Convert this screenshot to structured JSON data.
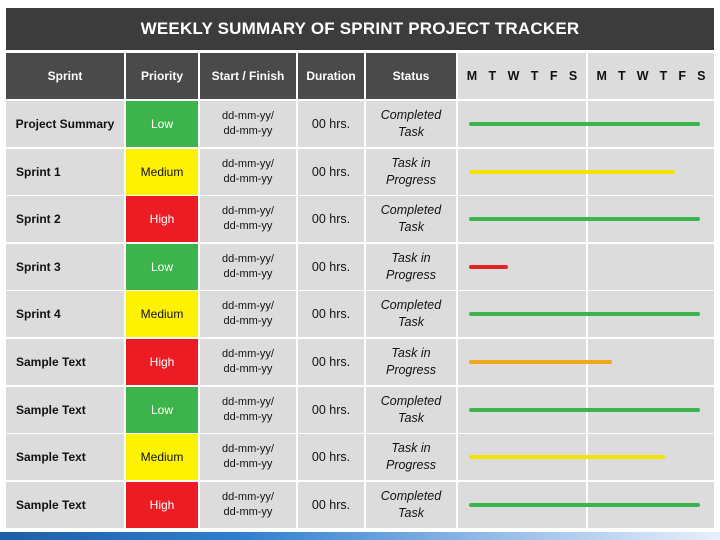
{
  "title": "WEEKLY SUMMARY OF SPRINT PROJECT TRACKER",
  "headers": {
    "sprint": "Sprint",
    "priority": "Priority",
    "start_finish": "Start / Finish",
    "duration": "Duration",
    "status": "Status",
    "week1_days": [
      "M",
      "T",
      "W",
      "T",
      "F",
      "S"
    ],
    "week2_days": [
      "M",
      "T",
      "W",
      "T",
      "F",
      "S"
    ]
  },
  "colors": {
    "Low": "#3cb44b",
    "Medium": "#fff200",
    "High": "#ed1c24",
    "bar_green": "#3cb44b",
    "bar_yellow": "#f5e200",
    "bar_red": "#e52320",
    "bar_orange": "#f0a818"
  },
  "rows": [
    {
      "sprint": "Project Summary",
      "priority": "Low",
      "start": "dd-mm-yy/",
      "finish": "dd-mm-yy",
      "duration": "00 hrs.",
      "status_line1": "Completed",
      "status_line2": "Task",
      "progress": 1.0,
      "bar_color": "bar_green"
    },
    {
      "sprint": "Sprint 1",
      "priority": "Medium",
      "start": "dd-mm-yy/",
      "finish": "dd-mm-yy",
      "duration": "00 hrs.",
      "status_line1": "Task in",
      "status_line2": "Progress",
      "progress": 0.89,
      "bar_color": "bar_yellow"
    },
    {
      "sprint": "Sprint 2",
      "priority": "High",
      "start": "dd-mm-yy/",
      "finish": "dd-mm-yy",
      "duration": "00 hrs.",
      "status_line1": "Completed",
      "status_line2": "Task",
      "progress": 1.0,
      "bar_color": "bar_green"
    },
    {
      "sprint": "Sprint 3",
      "priority": "Low",
      "start": "dd-mm-yy/",
      "finish": "dd-mm-yy",
      "duration": "00 hrs.",
      "status_line1": "Task in",
      "status_line2": "Progress",
      "progress": 0.17,
      "bar_color": "bar_red"
    },
    {
      "sprint": "Sprint 4",
      "priority": "Medium",
      "start": "dd-mm-yy/",
      "finish": "dd-mm-yy",
      "duration": "00 hrs.",
      "status_line1": "Completed",
      "status_line2": "Task",
      "progress": 1.0,
      "bar_color": "bar_green"
    },
    {
      "sprint": "Sample Text",
      "priority": "High",
      "start": "dd-mm-yy/",
      "finish": "dd-mm-yy",
      "duration": "00 hrs.",
      "status_line1": "Task in",
      "status_line2": "Progress",
      "progress": 0.62,
      "bar_color": "bar_orange"
    },
    {
      "sprint": "Sample Text",
      "priority": "Low",
      "start": "dd-mm-yy/",
      "finish": "dd-mm-yy",
      "duration": "00 hrs.",
      "status_line1": "Completed",
      "status_line2": "Task",
      "progress": 1.0,
      "bar_color": "bar_green"
    },
    {
      "sprint": "Sample Text",
      "priority": "Medium",
      "start": "dd-mm-yy/",
      "finish": "dd-mm-yy",
      "duration": "00 hrs.",
      "status_line1": "Task in",
      "status_line2": "Progress",
      "progress": 0.85,
      "bar_color": "bar_yellow"
    },
    {
      "sprint": "Sample Text",
      "priority": "High",
      "start": "dd-mm-yy/",
      "finish": "dd-mm-yy",
      "duration": "00 hrs.",
      "status_line1": "Completed",
      "status_line2": "Task",
      "progress": 1.0,
      "bar_color": "bar_green"
    }
  ]
}
